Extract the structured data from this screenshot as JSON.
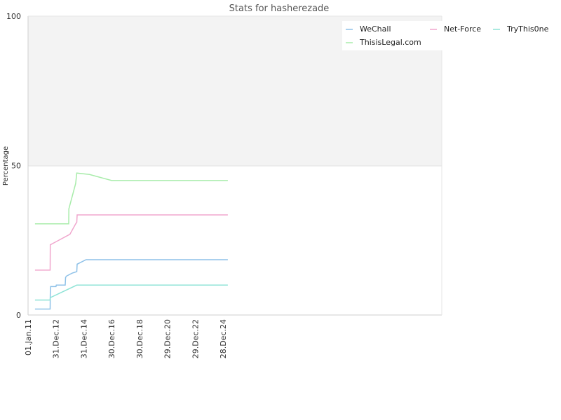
{
  "chart_data": {
    "type": "line",
    "title": "Stats for hasherezade",
    "xlabel": "",
    "ylabel": "Percentage",
    "ylim": [
      0,
      100
    ],
    "yticks": [
      0,
      50,
      100
    ],
    "xticks": [
      "01.Jan.11",
      "31.Dec.12",
      "31.Dec.14",
      "30.Dec.16",
      "30.Dec.18",
      "29.Dec.20",
      "29.Dec.22",
      "28.Dec.24"
    ],
    "xlim": [
      "2011-01-01",
      "2025-07-01"
    ],
    "grid": false,
    "legend_position": "top-right",
    "series": [
      {
        "name": "WeChall",
        "color": "#8ec1e8",
        "points": [
          [
            "2011-07-01",
            2
          ],
          [
            "2012-08-01",
            2
          ],
          [
            "2012-08-05",
            7
          ],
          [
            "2012-08-15",
            9.5
          ],
          [
            "2013-01-01",
            9.5
          ],
          [
            "2013-01-10",
            10
          ],
          [
            "2013-09-01",
            10
          ],
          [
            "2013-09-10",
            12.5
          ],
          [
            "2013-10-01",
            13
          ],
          [
            "2014-03-01",
            14
          ],
          [
            "2014-07-01",
            14.5
          ],
          [
            "2014-07-10",
            17
          ],
          [
            "2015-03-01",
            18.5
          ],
          [
            "2025-05-01",
            18.5
          ]
        ]
      },
      {
        "name": "Net-Force",
        "color": "#f0a6cd",
        "points": [
          [
            "2011-07-01",
            15
          ],
          [
            "2012-08-01",
            15
          ],
          [
            "2012-08-05",
            23.5
          ],
          [
            "2013-01-01",
            24.5
          ],
          [
            "2014-01-01",
            27
          ],
          [
            "2014-06-01",
            30.5
          ],
          [
            "2014-07-01",
            31
          ],
          [
            "2014-07-10",
            33.5
          ],
          [
            "2025-05-01",
            33.5
          ]
        ]
      },
      {
        "name": "TryThis0ne",
        "color": "#8ee3d6",
        "points": [
          [
            "2011-07-01",
            5
          ],
          [
            "2012-08-01",
            5
          ],
          [
            "2012-08-05",
            5.8
          ],
          [
            "2014-07-01",
            10
          ],
          [
            "2025-05-01",
            10
          ]
        ]
      },
      {
        "name": "ThisisLegal.com",
        "color": "#a8ecaa",
        "points": [
          [
            "2011-07-01",
            30.5
          ],
          [
            "2013-12-01",
            30.5
          ],
          [
            "2013-12-05",
            35.5
          ],
          [
            "2014-06-01",
            44
          ],
          [
            "2014-07-01",
            47.5
          ],
          [
            "2015-06-01",
            47
          ],
          [
            "2017-01-01",
            45
          ],
          [
            "2025-05-01",
            45
          ]
        ]
      }
    ]
  }
}
